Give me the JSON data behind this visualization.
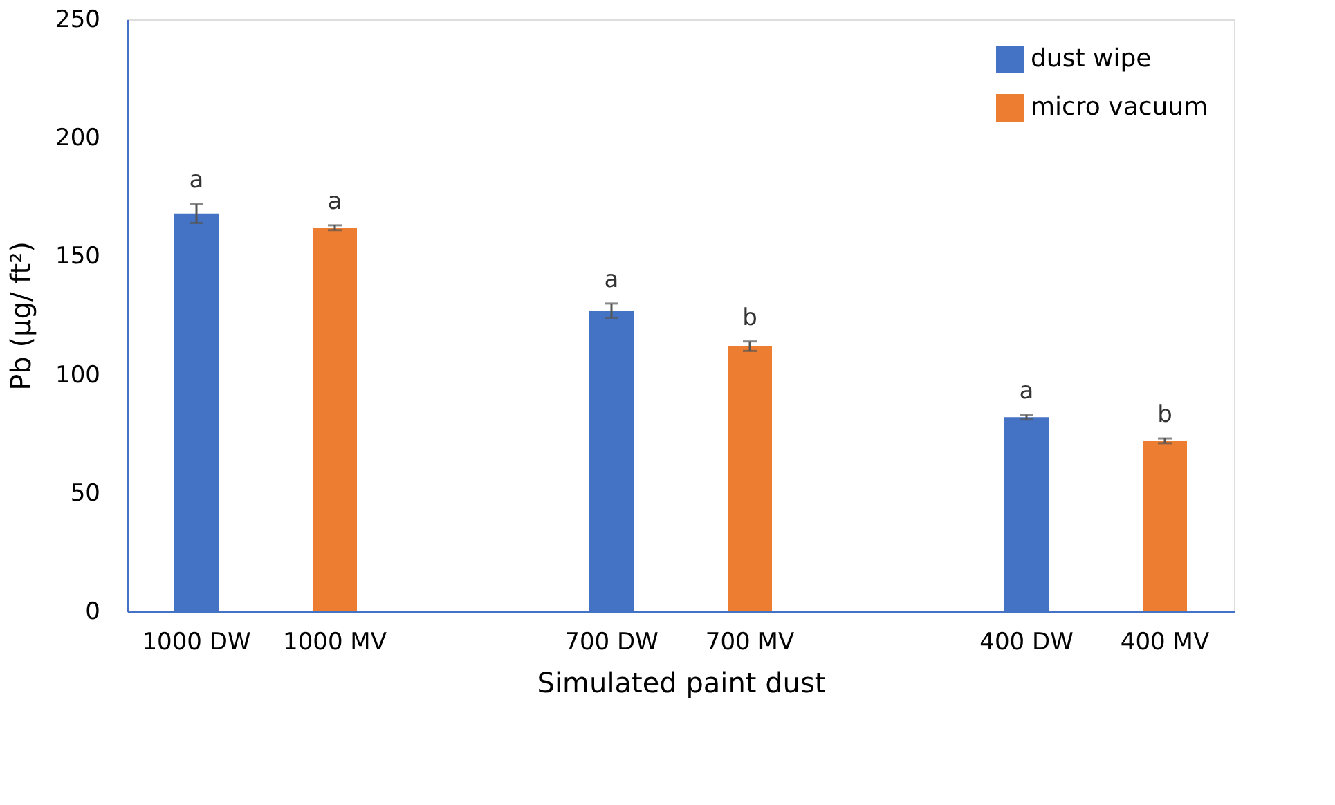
{
  "chart_data": {
    "type": "bar",
    "xlabel": "Simulated paint dust",
    "ylabel": "Pb (µg/ ft²)",
    "categories": [
      "1000 DW",
      "1000 MV",
      null,
      "700 DW",
      "700 MV",
      null,
      "400 DW",
      "400 MV"
    ],
    "series": [
      {
        "name": "dust wipe",
        "color": "#4472c4",
        "values": [
          168,
          null,
          null,
          127,
          null,
          null,
          82,
          null
        ],
        "errors": [
          4,
          null,
          null,
          3,
          null,
          null,
          1,
          null
        ]
      },
      {
        "name": "micro vacuum",
        "color": "#ed7d31",
        "values": [
          null,
          162,
          null,
          null,
          112,
          null,
          null,
          72
        ],
        "errors": [
          null,
          1,
          null,
          null,
          2,
          null,
          null,
          1
        ]
      }
    ],
    "ylim": [
      0,
      250
    ],
    "yticks": [
      0,
      50,
      100,
      150,
      200,
      250
    ],
    "grid": false,
    "legend": "top right",
    "annotations": [
      "a",
      "a",
      "a",
      "b",
      "a",
      "b"
    ]
  }
}
